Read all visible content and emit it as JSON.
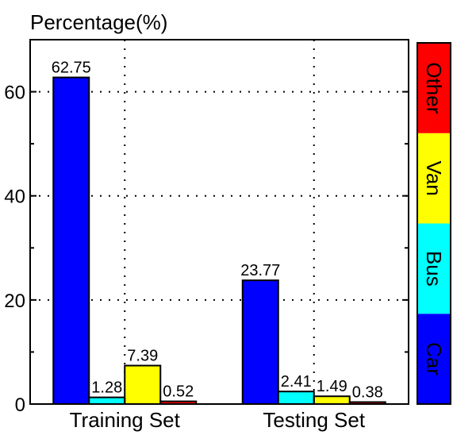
{
  "chart_data": {
    "type": "bar",
    "title": "",
    "ylabel": "Percentage(%)",
    "xlabel": "",
    "categories": [
      "Training Set",
      "Testing Set"
    ],
    "series": [
      {
        "name": "Car",
        "color": "#0000ff",
        "values": [
          62.75,
          23.77
        ],
        "labels": [
          "62.75",
          "23.77"
        ]
      },
      {
        "name": "Bus",
        "color": "#00ffff",
        "values": [
          1.28,
          2.41
        ],
        "labels": [
          "1.28",
          "2.41"
        ]
      },
      {
        "name": "Van",
        "color": "#ffff00",
        "values": [
          7.39,
          1.49
        ],
        "labels": [
          "7.39",
          "1.49"
        ]
      },
      {
        "name": "Other",
        "color": "#ff0000",
        "values": [
          0.52,
          0.38
        ],
        "labels": [
          "0.52",
          "0.38"
        ]
      }
    ],
    "ylim": [
      0,
      70
    ],
    "yticks": [
      0,
      20,
      40,
      60
    ],
    "ytick_labels": [
      "0",
      "20",
      "40",
      "60"
    ],
    "grid": true,
    "legend": "colorbar-right"
  }
}
